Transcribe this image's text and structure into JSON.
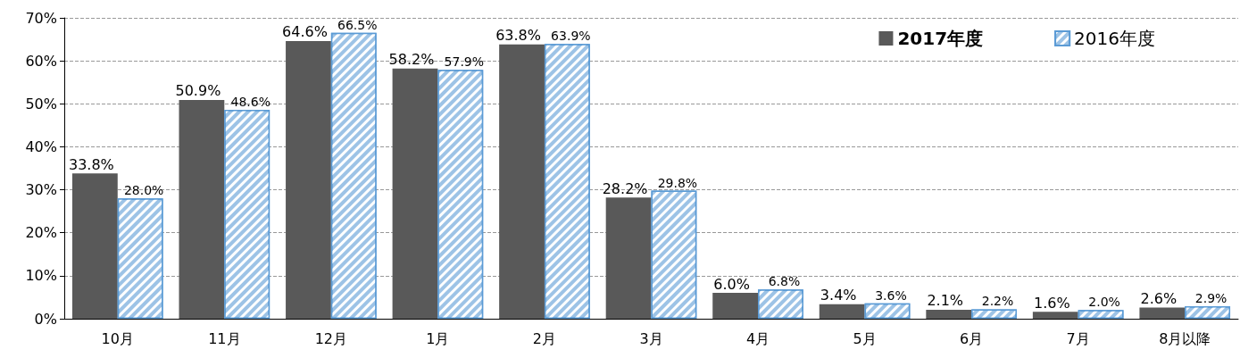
{
  "chart_data": {
    "type": "bar",
    "categories": [
      "10月",
      "11月",
      "12月",
      "1月",
      "2月",
      "3月",
      "4月",
      "5月",
      "6月",
      "7月",
      "8月以降"
    ],
    "series": [
      {
        "name": "2017年度",
        "color": "#595959",
        "values": [
          33.8,
          50.9,
          64.6,
          58.2,
          63.8,
          28.2,
          6.0,
          3.4,
          2.1,
          1.6,
          2.6
        ],
        "value_labels": [
          "33.8%",
          "50.9%",
          "64.6%",
          "58.2%",
          "63.8%",
          "28.2%",
          "6.0%",
          "3.4%",
          "2.1%",
          "1.6%",
          "2.6%"
        ]
      },
      {
        "name": "2016年度",
        "color": "#9dc3e6",
        "values": [
          28.0,
          48.6,
          66.5,
          57.9,
          63.9,
          29.8,
          6.8,
          3.6,
          2.2,
          2.0,
          2.9
        ],
        "value_labels": [
          "28.0%",
          "48.6%",
          "66.5%",
          "57.9%",
          "63.9%",
          "29.8%",
          "6.8%",
          "3.6%",
          "2.2%",
          "2.0%",
          "2.9%"
        ]
      }
    ],
    "ylim": [
      0,
      70
    ],
    "yticks": [
      {
        "value": 0,
        "label": "0%"
      },
      {
        "value": 10,
        "label": "10%"
      },
      {
        "value": 20,
        "label": "20%"
      },
      {
        "value": 30,
        "label": "30%"
      },
      {
        "value": 40,
        "label": "40%"
      },
      {
        "value": 50,
        "label": "50%"
      },
      {
        "value": 60,
        "label": "60%"
      },
      {
        "value": 70,
        "label": "70%"
      }
    ],
    "grid": "y",
    "legend": "top right"
  }
}
